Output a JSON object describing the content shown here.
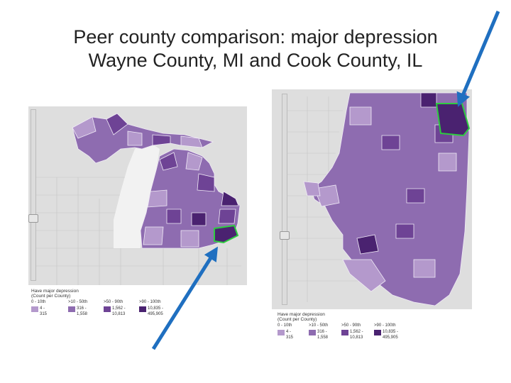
{
  "title": {
    "line1": "Peer county comparison:  major depression",
    "line2": "Wayne County, MI and Cook County, IL"
  },
  "colors": {
    "bin1": "#b499cc",
    "bin2": "#8e6cb0",
    "bin3": "#6e4395",
    "bin4": "#4a2270",
    "highlight": "#2ecc40",
    "arrow": "#1f6fc0",
    "water": "#f2f2f2",
    "land_outside": "#dedede"
  },
  "legend": {
    "title_line1": "Have major depression",
    "title_line2": "(Count per County)",
    "bins": [
      {
        "range": "0 - 10th",
        "min": "4 -",
        "max": "315"
      },
      {
        "range": ">10 - 50th",
        "min": "316 -",
        "max": "1,558"
      },
      {
        "range": ">50 - 90th",
        "min": "1,562 -",
        "max": "10,813"
      },
      {
        "range": ">90 - 100th",
        "min": "10,835 -",
        "max": "495,905"
      }
    ]
  },
  "maps": [
    {
      "id": "michigan",
      "highlighted_county": "Wayne County, MI"
    },
    {
      "id": "illinois",
      "highlighted_county": "Cook County, IL"
    }
  ]
}
